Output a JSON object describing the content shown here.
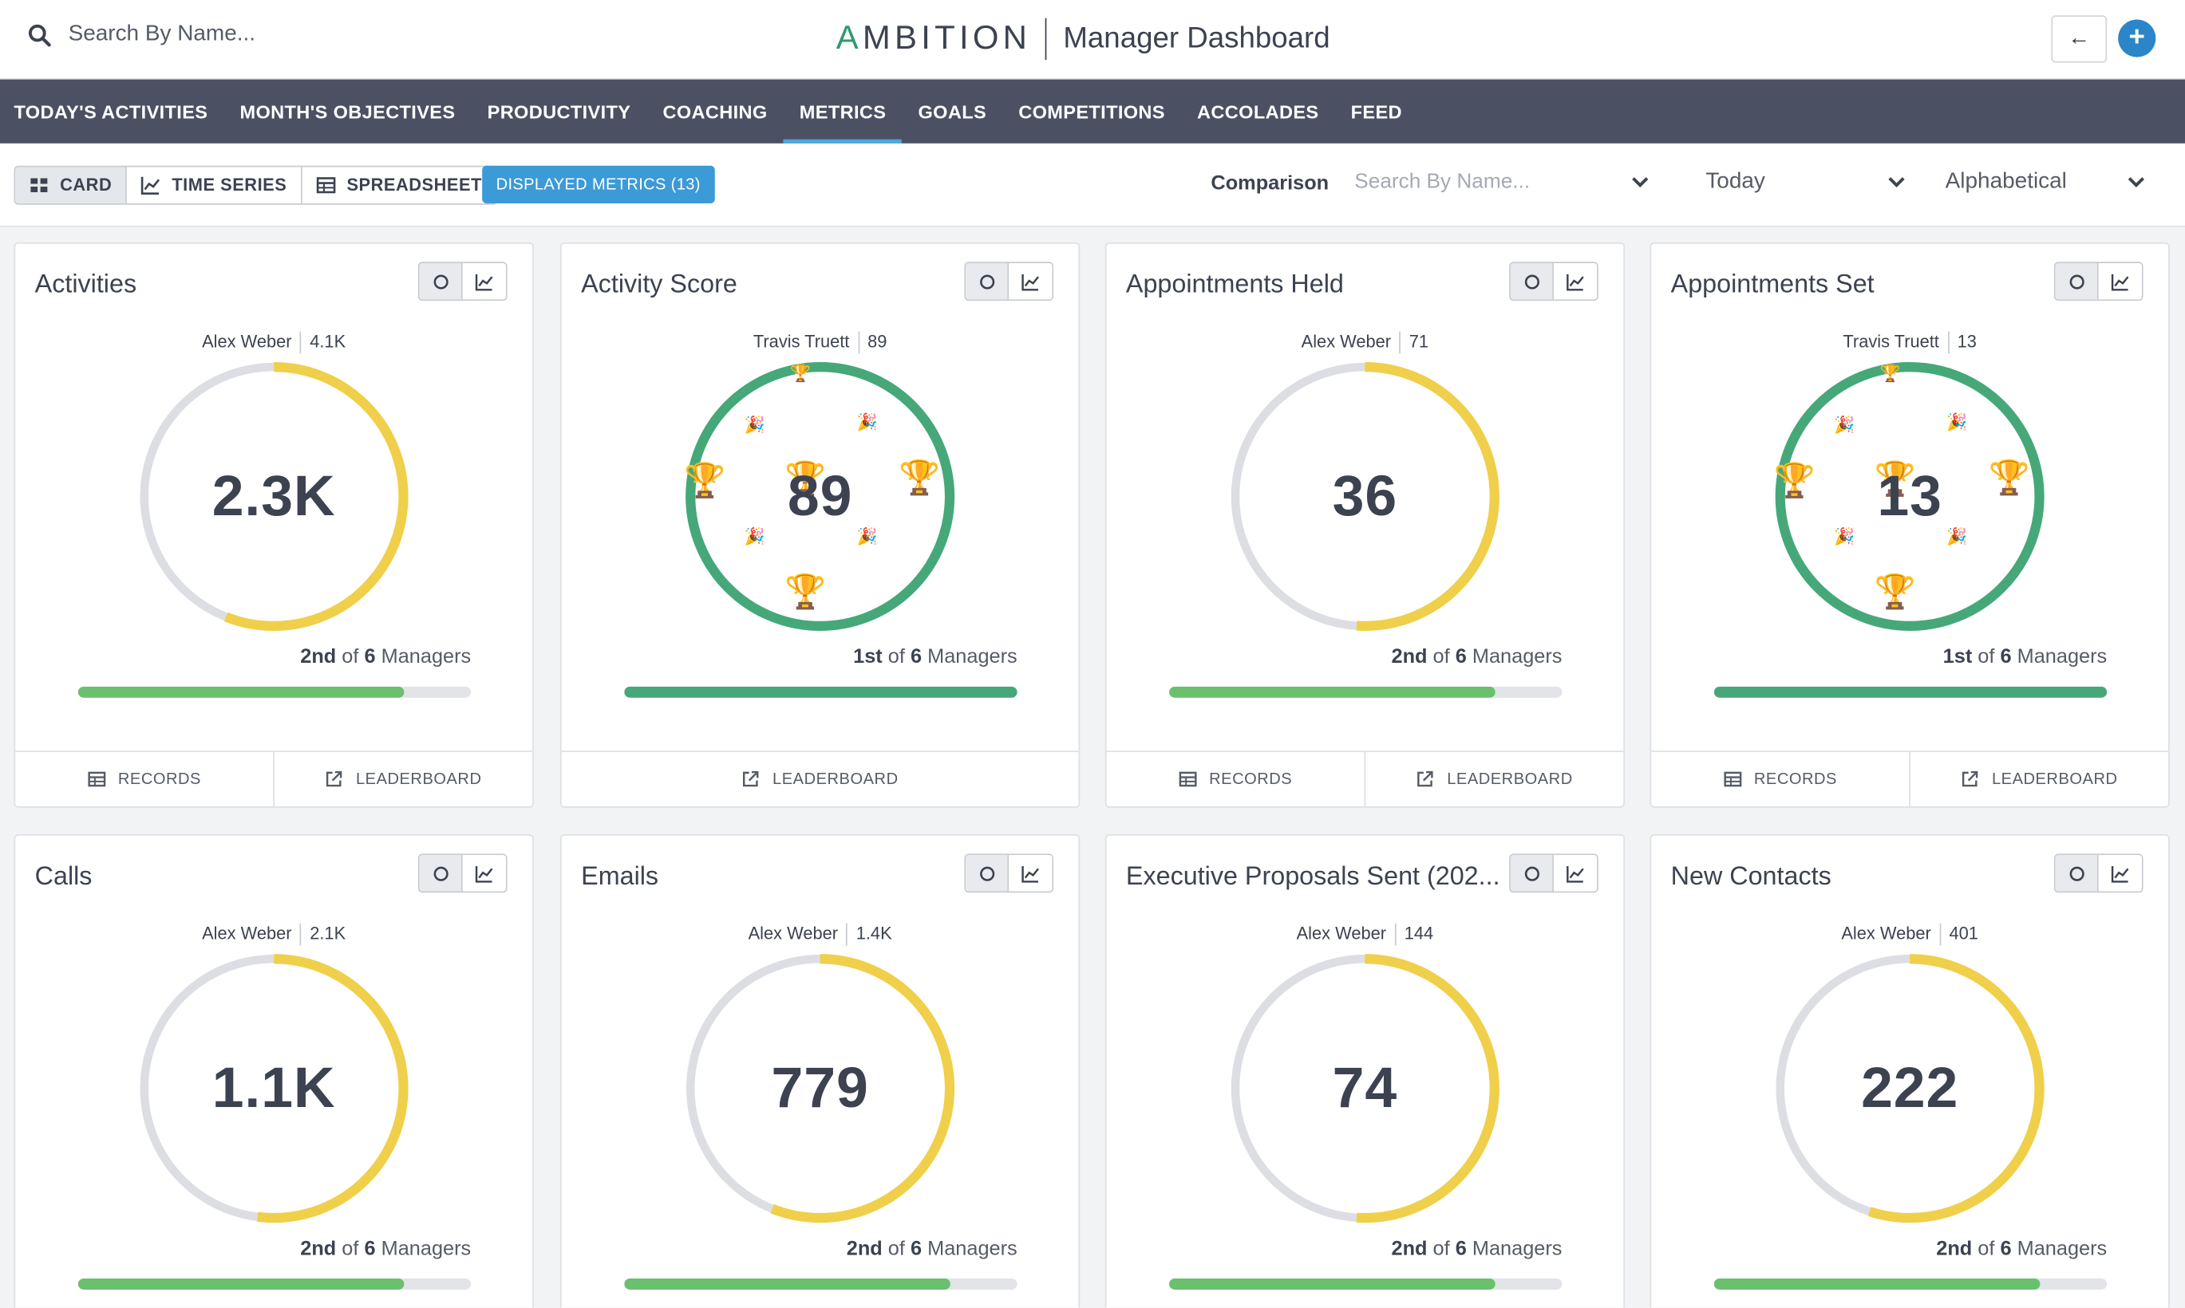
{
  "header": {
    "search_placeholder": "Search By Name...",
    "brand_a": "A",
    "brand_rest": "MBITION",
    "title": "Manager Dashboard",
    "back_icon": "arrow-left-icon",
    "add_icon": "plus-icon",
    "back_label": "←",
    "add_label": "+"
  },
  "nav": {
    "items": [
      {
        "label": "TODAY'S ACTIVITIES"
      },
      {
        "label": "MONTH'S OBJECTIVES"
      },
      {
        "label": "PRODUCTIVITY"
      },
      {
        "label": "COACHING"
      },
      {
        "label": "METRICS",
        "active": true
      },
      {
        "label": "GOALS"
      },
      {
        "label": "COMPETITIONS"
      },
      {
        "label": "ACCOLADES"
      },
      {
        "label": "FEED"
      }
    ]
  },
  "toolbar": {
    "views": [
      {
        "label": "CARD",
        "active": true,
        "icon": "grid-icon"
      },
      {
        "label": "TIME SERIES",
        "icon": "line-chart-icon"
      },
      {
        "label": "SPREADSHEET",
        "icon": "table-icon"
      }
    ],
    "displayed_metrics": "DISPLAYED METRICS (13)",
    "comparison_label": "Comparison",
    "comparison_placeholder": "Search By Name...",
    "period": "Today",
    "sort": "Alphabetical"
  },
  "colors": {
    "nav_bg": "#4b5162",
    "accent_blue": "#3c9ad6",
    "gauge_yellow": "#f0cf4a",
    "gauge_gray": "#dcdee3",
    "gauge_green": "#46a879",
    "progress_green": "#6bc06d"
  },
  "footer_labels": {
    "records": "RECORDS",
    "leaderboard": "LEADERBOARD"
  },
  "cards": [
    {
      "title": "Activities",
      "leader_name": "Alex Weber",
      "leader_value": "4.1K",
      "value": "2.3K",
      "rank": "2nd",
      "rank_of": "of",
      "total": "6",
      "unit": "Managers",
      "gauge_fraction": 0.56,
      "progress_fraction": 0.83,
      "winner": false,
      "footer": [
        "records",
        "leaderboard"
      ]
    },
    {
      "title": "Activity Score",
      "leader_name": "Travis Truett",
      "leader_value": "89",
      "value": "89",
      "rank": "1st",
      "rank_of": "of",
      "total": "6",
      "unit": "Managers",
      "gauge_fraction": 1.0,
      "progress_fraction": 1.0,
      "winner": true,
      "footer": [
        "leaderboard"
      ]
    },
    {
      "title": "Appointments Held",
      "leader_name": "Alex Weber",
      "leader_value": "71",
      "value": "36",
      "rank": "2nd",
      "rank_of": "of",
      "total": "6",
      "unit": "Managers",
      "gauge_fraction": 0.51,
      "progress_fraction": 0.83,
      "winner": false,
      "footer": [
        "records",
        "leaderboard"
      ]
    },
    {
      "title": "Appointments Set",
      "leader_name": "Travis Truett",
      "leader_value": "13",
      "value": "13",
      "rank": "1st",
      "rank_of": "of",
      "total": "6",
      "unit": "Managers",
      "gauge_fraction": 1.0,
      "progress_fraction": 1.0,
      "winner": true,
      "footer": [
        "records",
        "leaderboard"
      ]
    },
    {
      "title": "Calls",
      "leader_name": "Alex Weber",
      "leader_value": "2.1K",
      "value": "1.1K",
      "rank": "2nd",
      "rank_of": "of",
      "total": "6",
      "unit": "Managers",
      "gauge_fraction": 0.52,
      "progress_fraction": 0.83,
      "winner": false,
      "footer": []
    },
    {
      "title": "Emails",
      "leader_name": "Alex Weber",
      "leader_value": "1.4K",
      "value": "779",
      "rank": "2nd",
      "rank_of": "of",
      "total": "6",
      "unit": "Managers",
      "gauge_fraction": 0.56,
      "progress_fraction": 0.83,
      "winner": false,
      "footer": []
    },
    {
      "title": "Executive Proposals Sent (202...",
      "leader_name": "Alex Weber",
      "leader_value": "144",
      "value": "74",
      "rank": "2nd",
      "rank_of": "of",
      "total": "6",
      "unit": "Managers",
      "gauge_fraction": 0.51,
      "progress_fraction": 0.83,
      "winner": false,
      "footer": []
    },
    {
      "title": "New Contacts",
      "leader_name": "Alex Weber",
      "leader_value": "401",
      "value": "222",
      "rank": "2nd",
      "rank_of": "of",
      "total": "6",
      "unit": "Managers",
      "gauge_fraction": 0.55,
      "progress_fraction": 0.83,
      "winner": false,
      "footer": []
    }
  ]
}
